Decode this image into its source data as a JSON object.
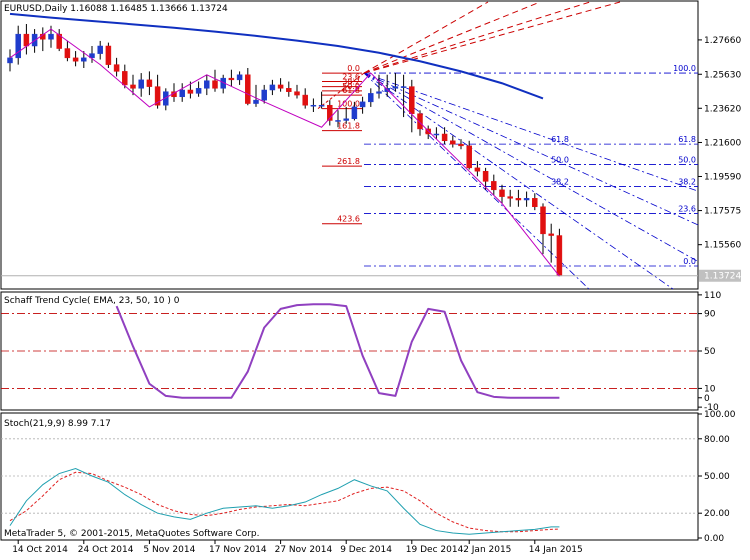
{
  "colors": {
    "background": "#ffffff",
    "frame": "#000000",
    "bull_candle": "#1f3ccc",
    "bear_candle": "#e01010",
    "ema_line": "#1030c0",
    "zigzag": "#c000c0",
    "fib_retracement": "#cc0000",
    "fib_fan": "#0000cc",
    "stc_line": "#9040c0",
    "stc_levels": "#c00000",
    "stoch_main": "#20a0b0",
    "stoch_signal": "#e02020",
    "grid_dots": "#b0b0b0"
  },
  "chart_data": [
    {
      "type": "candlestick",
      "title": "EURUSD,Daily  1.16088 1.16485 1.13666 1.13724",
      "symbol": "EURUSD",
      "timeframe": "Daily",
      "ohlc_header": {
        "open": "1.16088",
        "high": "1.16485",
        "low": "1.13666",
        "close": "1.13724"
      },
      "yaxis_ticks": [
        "1.27660",
        "1.25630",
        "1.23620",
        "1.21600",
        "1.19590",
        "1.17575",
        "1.15560"
      ],
      "ylim": [
        1.13,
        1.299
      ],
      "current_price_label": "1.13724",
      "current_price": 1.13724,
      "grid": false,
      "series": [
        {
          "name": "",
          "kind": "ohlc",
          "x": [
            "2014-10-13",
            "2014-10-14",
            "2014-10-15",
            "2014-10-16",
            "2014-10-17",
            "2014-10-20",
            "2014-10-21",
            "2014-10-22",
            "2014-10-23",
            "2014-10-24",
            "2014-10-27",
            "2014-10-28",
            "2014-10-29",
            "2014-10-30",
            "2014-10-31",
            "2014-11-03",
            "2014-11-04",
            "2014-11-05",
            "2014-11-06",
            "2014-11-07",
            "2014-11-10",
            "2014-11-11",
            "2014-11-12",
            "2014-11-13",
            "2014-11-14",
            "2014-11-17",
            "2014-11-18",
            "2014-11-19",
            "2014-11-20",
            "2014-11-21",
            "2014-11-24",
            "2014-11-25",
            "2014-11-26",
            "2014-11-27",
            "2014-11-28",
            "2014-12-01",
            "2014-12-02",
            "2014-12-03",
            "2014-12-04",
            "2014-12-05",
            "2014-12-08",
            "2014-12-09",
            "2014-12-10",
            "2014-12-11",
            "2014-12-12",
            "2014-12-15",
            "2014-12-16",
            "2014-12-17",
            "2014-12-18",
            "2014-12-19",
            "2014-12-22",
            "2014-12-23",
            "2014-12-24",
            "2014-12-26",
            "2014-12-29",
            "2014-12-30",
            "2014-12-31",
            "2015-01-02",
            "2015-01-05",
            "2015-01-06",
            "2015-01-07",
            "2015-01-08",
            "2015-01-09",
            "2015-01-12",
            "2015-01-13",
            "2015-01-14",
            "2015-01-15",
            "2015-01-16"
          ],
          "open": [
            1.263,
            1.266,
            1.28,
            1.273,
            1.28,
            1.277,
            1.28,
            1.2715,
            1.266,
            1.264,
            1.266,
            1.2685,
            1.273,
            1.262,
            1.258,
            1.25,
            1.248,
            1.253,
            1.249,
            1.238,
            1.246,
            1.243,
            1.247,
            1.245,
            1.248,
            1.2525,
            1.248,
            1.254,
            1.253,
            1.256,
            1.239,
            1.241,
            1.247,
            1.25,
            1.248,
            1.246,
            1.244,
            1.238,
            1.238,
            1.238,
            1.229,
            1.229,
            1.23,
            1.237,
            1.24,
            1.245,
            1.246,
            1.248,
            1.249,
            1.249,
            1.233,
            1.224,
            1.221,
            1.221,
            1.217,
            1.215,
            1.214,
            1.201,
            1.199,
            1.193,
            1.188,
            1.184,
            1.183,
            1.182,
            1.183,
            1.178,
            1.162,
            1.161
          ],
          "high": [
            1.271,
            1.285,
            1.286,
            1.283,
            1.284,
            1.285,
            1.283,
            1.276,
            1.27,
            1.27,
            1.273,
            1.276,
            1.275,
            1.266,
            1.262,
            1.256,
            1.257,
            1.258,
            1.256,
            1.248,
            1.251,
            1.251,
            1.252,
            1.252,
            1.256,
            1.259,
            1.256,
            1.259,
            1.258,
            1.26,
            1.25,
            1.25,
            1.253,
            1.254,
            1.252,
            1.25,
            1.248,
            1.242,
            1.246,
            1.241,
            1.235,
            1.237,
            1.24,
            1.243,
            1.248,
            1.256,
            1.256,
            1.257,
            1.256,
            1.253,
            1.235,
            1.226,
            1.225,
            1.225,
            1.22,
            1.218,
            1.217,
            1.205,
            1.201,
            1.197,
            1.191,
            1.188,
            1.188,
            1.187,
            1.186,
            1.18,
            1.168,
            1.165
          ],
          "low": [
            1.258,
            1.262,
            1.268,
            1.269,
            1.27,
            1.272,
            1.27,
            1.264,
            1.261,
            1.26,
            1.263,
            1.265,
            1.26,
            1.255,
            1.248,
            1.244,
            1.243,
            1.244,
            1.236,
            1.235,
            1.24,
            1.24,
            1.242,
            1.243,
            1.244,
            1.246,
            1.245,
            1.249,
            1.25,
            1.238,
            1.237,
            1.239,
            1.244,
            1.246,
            1.243,
            1.242,
            1.236,
            1.234,
            1.236,
            1.226,
            1.225,
            1.227,
            1.229,
            1.233,
            1.237,
            1.242,
            1.243,
            1.246,
            1.231,
            1.222,
            1.22,
            1.218,
            1.218,
            1.215,
            1.213,
            1.212,
            1.2,
            1.196,
            1.188,
            1.185,
            1.18,
            1.178,
            1.178,
            1.178,
            1.176,
            1.15,
            1.145,
            1.137
          ],
          "close": [
            1.266,
            1.28,
            1.273,
            1.28,
            1.277,
            1.28,
            1.2715,
            1.266,
            1.264,
            1.266,
            1.2685,
            1.273,
            1.262,
            1.258,
            1.25,
            1.248,
            1.253,
            1.249,
            1.238,
            1.246,
            1.243,
            1.247,
            1.245,
            1.248,
            1.2525,
            1.248,
            1.254,
            1.253,
            1.256,
            1.239,
            1.241,
            1.247,
            1.25,
            1.248,
            1.246,
            1.244,
            1.238,
            1.238,
            1.238,
            1.229,
            1.229,
            1.23,
            1.237,
            1.24,
            1.245,
            1.246,
            1.248,
            1.249,
            1.249,
            1.233,
            1.224,
            1.221,
            1.221,
            1.217,
            1.215,
            1.214,
            1.201,
            1.199,
            1.193,
            1.188,
            1.184,
            1.183,
            1.182,
            1.183,
            1.178,
            1.162,
            1.161,
            1.1372
          ]
        },
        {
          "name": "",
          "kind": "moving_average",
          "x_index": [
            0,
            5,
            10,
            15,
            20,
            25,
            30,
            35,
            40,
            45,
            50,
            55,
            60,
            65
          ],
          "values": [
            1.292,
            1.2898,
            1.2878,
            1.2858,
            1.2838,
            1.2815,
            1.279,
            1.2762,
            1.273,
            1.269,
            1.264,
            1.258,
            1.251,
            1.242
          ]
        },
        {
          "name": "",
          "kind": "zigzag",
          "x_index": [
            0,
            5,
            11,
            17,
            24,
            31,
            38,
            44,
            52,
            60,
            67
          ],
          "values": [
            1.266,
            1.283,
            1.262,
            1.237,
            1.256,
            1.24,
            1.225,
            1.257,
            1.218,
            1.18,
            1.137
          ]
        }
      ],
      "fibonacci_retracement": {
        "levels": [
          {
            "label": "0.0",
            "price": 1.257
          },
          {
            "label": "23.6",
            "price": 1.252
          },
          {
            "label": "38.2",
            "price": 1.249
          },
          {
            "label": "50.0",
            "price": 1.2465
          },
          {
            "label": "61.8",
            "price": 1.244
          },
          {
            "label": "100.0",
            "price": 1.236
          },
          {
            "label": "161.8",
            "price": 1.223
          },
          {
            "label": "261.8",
            "price": 1.202
          },
          {
            "label": "423.6",
            "price": 1.168
          }
        ]
      },
      "fibonacci_fan": {
        "levels": [
          {
            "label": "100.0",
            "price": 1.257
          },
          {
            "label": "61.8",
            "price": 1.215
          },
          {
            "label": "50.0",
            "price": 1.203
          },
          {
            "label": "38.2",
            "price": 1.19
          },
          {
            "label": "23.6",
            "price": 1.174
          },
          {
            "label": "0.0",
            "price": 1.143
          }
        ]
      },
      "xaxis_ticks": [
        "14 Oct 2014",
        "24 Oct 2014",
        "5 Nov 2014",
        "17 Nov 2014",
        "27 Nov 2014",
        "9 Dec 2014",
        "19 Dec 2014",
        "2 Jan 2015",
        "14 Jan 2015"
      ]
    },
    {
      "type": "line",
      "title": "Schaff Trend Cycle( EMA, 23, 50, 10 ) 0",
      "yaxis_ticks": [
        "110",
        "90",
        "50",
        "10",
        "0",
        "-10"
      ],
      "ylim": [
        -12,
        112
      ],
      "levels": [
        90,
        50,
        10
      ],
      "series": [
        {
          "name": "",
          "x_index": [
            13,
            15,
            17,
            19,
            21,
            23,
            25,
            27,
            29,
            31,
            33,
            35,
            37,
            39,
            41,
            43,
            45,
            47,
            49,
            51,
            53,
            55,
            57,
            59,
            61,
            63,
            65,
            67
          ],
          "values": [
            98,
            55,
            15,
            2,
            0,
            0,
            0,
            0,
            28,
            75,
            95,
            99,
            100,
            100,
            98,
            45,
            5,
            2,
            60,
            95,
            92,
            40,
            6,
            1,
            0,
            0,
            0,
            0
          ]
        }
      ]
    },
    {
      "type": "line",
      "title": "Stoch(21,9,9) 8.99 7.17",
      "yaxis_ticks": [
        "100.00",
        "80.00",
        "50.00",
        "20.00",
        "0.00"
      ],
      "ylim": [
        0,
        100
      ],
      "levels": [
        80,
        50,
        20
      ],
      "series": [
        {
          "name": "",
          "x_index": [
            0,
            2,
            4,
            6,
            8,
            10,
            12,
            14,
            16,
            18,
            20,
            22,
            24,
            26,
            28,
            30,
            32,
            34,
            36,
            38,
            40,
            42,
            44,
            46,
            48,
            50,
            52,
            54,
            56,
            58,
            60,
            62,
            64,
            66,
            67
          ],
          "values": [
            10,
            30,
            43,
            52,
            56,
            50,
            45,
            35,
            27,
            20,
            17,
            15,
            20,
            24,
            25,
            26,
            24,
            26,
            29,
            35,
            40,
            47,
            42,
            38,
            24,
            11,
            6,
            4,
            3,
            4,
            5,
            6,
            7,
            9,
            8.99
          ]
        },
        {
          "name": "",
          "x_index": [
            0,
            2,
            4,
            6,
            8,
            10,
            12,
            14,
            16,
            18,
            20,
            22,
            24,
            26,
            28,
            30,
            32,
            34,
            36,
            38,
            40,
            42,
            44,
            46,
            48,
            50,
            52,
            54,
            56,
            58,
            60,
            62,
            64,
            66,
            67
          ],
          "values": [
            14,
            22,
            34,
            47,
            53,
            52,
            46,
            41,
            35,
            27,
            22,
            19,
            18,
            20,
            23,
            25,
            26,
            27,
            26,
            28,
            30,
            36,
            40,
            41,
            38,
            30,
            20,
            13,
            8,
            6,
            5,
            5,
            6,
            7,
            7.17
          ]
        }
      ]
    }
  ],
  "footer": {
    "copyright": "MetaTrader 5, © 2001-2015, MetaQuotes Software Corp."
  }
}
